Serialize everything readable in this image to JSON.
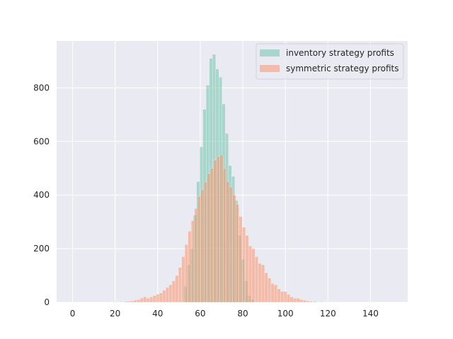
{
  "chart_data": {
    "type": "histogram",
    "title": "",
    "xlabel": "",
    "ylabel": "",
    "xlim": [
      -7.5,
      157.5
    ],
    "ylim": [
      0,
      975
    ],
    "xticks": [
      0,
      20,
      40,
      60,
      80,
      100,
      120,
      140
    ],
    "yticks": [
      0,
      200,
      400,
      600,
      800
    ],
    "grid": true,
    "legend_position": "top-right",
    "bin_width": 1.5,
    "series": [
      {
        "name": "inventory strategy profits",
        "color": "#66c2a5",
        "opacity": 0.5,
        "bins": [
          {
            "x": 53,
            "value": 60
          },
          {
            "x": 54.5,
            "value": 140
          },
          {
            "x": 56,
            "value": 200
          },
          {
            "x": 57.5,
            "value": 325
          },
          {
            "x": 59,
            "value": 450
          },
          {
            "x": 60.5,
            "value": 580
          },
          {
            "x": 62,
            "value": 720
          },
          {
            "x": 63.5,
            "value": 810
          },
          {
            "x": 65,
            "value": 910
          },
          {
            "x": 66.5,
            "value": 925
          },
          {
            "x": 68,
            "value": 870
          },
          {
            "x": 69.5,
            "value": 840
          },
          {
            "x": 71,
            "value": 740
          },
          {
            "x": 72.5,
            "value": 630
          },
          {
            "x": 74,
            "value": 510
          },
          {
            "x": 75.5,
            "value": 470
          },
          {
            "x": 77,
            "value": 380
          },
          {
            "x": 78.5,
            "value": 250
          },
          {
            "x": 80,
            "value": 160
          },
          {
            "x": 81.5,
            "value": 80
          },
          {
            "x": 83,
            "value": 25
          },
          {
            "x": 84.5,
            "value": 10
          }
        ]
      },
      {
        "name": "symmetric strategy profits",
        "color": "#fc8d62",
        "opacity": 0.5,
        "bins": [
          {
            "x": 17,
            "value": 1
          },
          {
            "x": 20,
            "value": 2
          },
          {
            "x": 23,
            "value": 2
          },
          {
            "x": 25,
            "value": 3
          },
          {
            "x": 26.5,
            "value": 4
          },
          {
            "x": 28,
            "value": 5
          },
          {
            "x": 29.5,
            "value": 8
          },
          {
            "x": 31,
            "value": 10
          },
          {
            "x": 32.5,
            "value": 15
          },
          {
            "x": 34,
            "value": 20
          },
          {
            "x": 35.5,
            "value": 15
          },
          {
            "x": 37,
            "value": 20
          },
          {
            "x": 38.5,
            "value": 25
          },
          {
            "x": 40,
            "value": 30
          },
          {
            "x": 41.5,
            "value": 35
          },
          {
            "x": 43,
            "value": 45
          },
          {
            "x": 44.5,
            "value": 55
          },
          {
            "x": 46,
            "value": 65
          },
          {
            "x": 47.5,
            "value": 80
          },
          {
            "x": 49,
            "value": 100
          },
          {
            "x": 50.5,
            "value": 130
          },
          {
            "x": 52,
            "value": 170
          },
          {
            "x": 53.5,
            "value": 215
          },
          {
            "x": 55,
            "value": 265
          },
          {
            "x": 56.5,
            "value": 305
          },
          {
            "x": 58,
            "value": 350
          },
          {
            "x": 59.5,
            "value": 395
          },
          {
            "x": 61,
            "value": 420
          },
          {
            "x": 62.5,
            "value": 450
          },
          {
            "x": 64,
            "value": 480
          },
          {
            "x": 65.5,
            "value": 500
          },
          {
            "x": 67,
            "value": 530
          },
          {
            "x": 68.5,
            "value": 545
          },
          {
            "x": 70,
            "value": 550
          },
          {
            "x": 71.5,
            "value": 500
          },
          {
            "x": 73,
            "value": 450
          },
          {
            "x": 74.5,
            "value": 430
          },
          {
            "x": 76,
            "value": 400
          },
          {
            "x": 77.5,
            "value": 365
          },
          {
            "x": 79,
            "value": 320
          },
          {
            "x": 80.5,
            "value": 280
          },
          {
            "x": 82,
            "value": 250
          },
          {
            "x": 83.5,
            "value": 210
          },
          {
            "x": 85,
            "value": 200
          },
          {
            "x": 86.5,
            "value": 170
          },
          {
            "x": 88,
            "value": 145
          },
          {
            "x": 89.5,
            "value": 140
          },
          {
            "x": 91,
            "value": 110
          },
          {
            "x": 92.5,
            "value": 90
          },
          {
            "x": 94,
            "value": 70
          },
          {
            "x": 95.5,
            "value": 65
          },
          {
            "x": 97,
            "value": 50
          },
          {
            "x": 98.5,
            "value": 40
          },
          {
            "x": 100,
            "value": 40
          },
          {
            "x": 101.5,
            "value": 30
          },
          {
            "x": 103,
            "value": 20
          },
          {
            "x": 104.5,
            "value": 15
          },
          {
            "x": 106,
            "value": 15
          },
          {
            "x": 107.5,
            "value": 10
          },
          {
            "x": 109,
            "value": 8
          },
          {
            "x": 110.5,
            "value": 5
          },
          {
            "x": 112,
            "value": 4
          },
          {
            "x": 114,
            "value": 3
          },
          {
            "x": 117,
            "value": 2
          },
          {
            "x": 120,
            "value": 1
          },
          {
            "x": 125,
            "value": 1
          }
        ]
      }
    ]
  }
}
